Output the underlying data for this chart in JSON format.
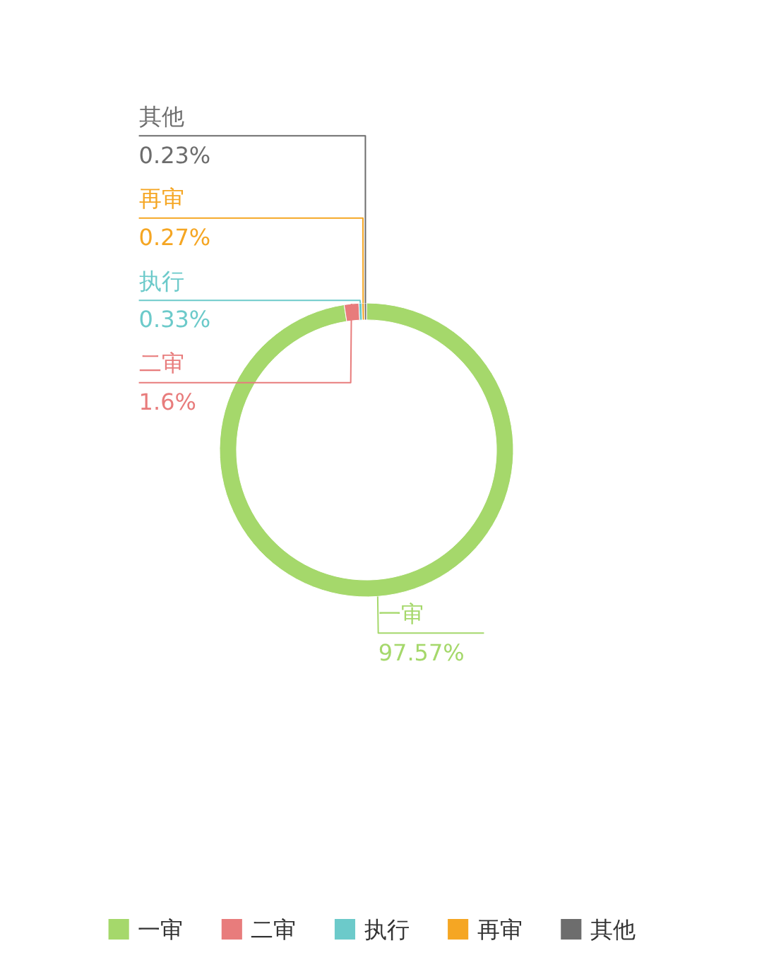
{
  "chart_data": {
    "type": "donut",
    "categories": [
      "一审",
      "二审",
      "执行",
      "再审",
      "其他"
    ],
    "values": [
      97.57,
      1.6,
      0.33,
      0.27,
      0.23
    ],
    "colors": [
      "#a5d86b",
      "#e87c7c",
      "#6ccaca",
      "#f5a623",
      "#6d6d6d"
    ],
    "value_labels": [
      "97.57%",
      "1.6%",
      "0.33%",
      "0.27%",
      "0.23%"
    ],
    "legend": "bottom"
  }
}
